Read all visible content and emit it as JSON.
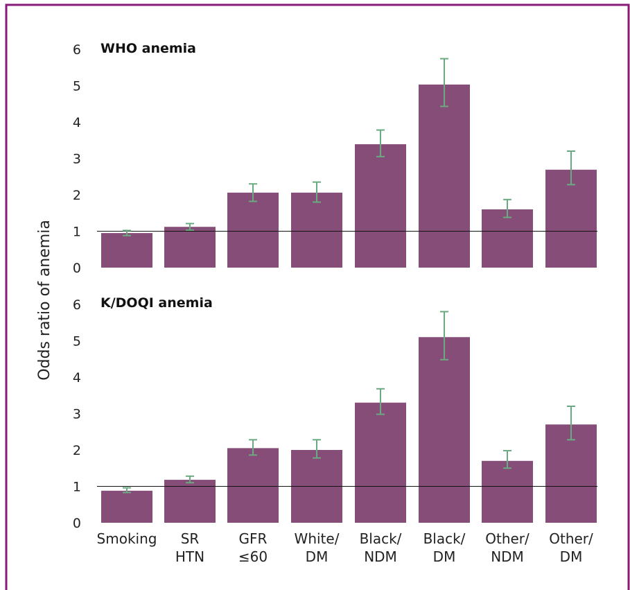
{
  "figure": {
    "border_color": "#8a1a7a",
    "bar_color": "#874d79",
    "error_color": "#6aaa80",
    "reference_line_color": "#111111"
  },
  "chart_data": [
    {
      "type": "bar",
      "title": "WHO anemia",
      "ylabel": "Odds ratio of anemia",
      "xlabel": "",
      "ylim": [
        0,
        6
      ],
      "yticks": [
        "0",
        "1",
        "2",
        "3",
        "4",
        "5",
        "6"
      ],
      "reference_line": 1,
      "categories": [
        "Smoking",
        "SR HTN",
        "GFR ≤60",
        "White/ DM",
        "Black/ NDM",
        "Black/ DM",
        "Other/ NDM",
        "Other/ DM"
      ],
      "values": [
        0.95,
        1.12,
        2.06,
        2.06,
        3.39,
        5.03,
        1.6,
        2.69
      ],
      "error_low": [
        0.88,
        1.03,
        1.82,
        1.8,
        3.05,
        4.43,
        1.38,
        2.28
      ],
      "error_high": [
        1.02,
        1.21,
        2.3,
        2.35,
        3.78,
        5.74,
        1.87,
        3.2
      ],
      "show_category_labels": false
    },
    {
      "type": "bar",
      "title": "K/DOQI anemia",
      "ylabel": "Odds ratio of anemia",
      "xlabel": "",
      "ylim": [
        0,
        6
      ],
      "yticks": [
        "0",
        "1",
        "2",
        "3",
        "4",
        "5",
        "6"
      ],
      "reference_line": 1,
      "categories": [
        "Smoking",
        "SR HTN",
        "GFR ≤60",
        "White/ DM",
        "Black/ NDM",
        "Black/ DM",
        "Other/ NDM",
        "Other/ DM"
      ],
      "values": [
        0.88,
        1.18,
        2.05,
        2.0,
        3.3,
        5.1,
        1.7,
        2.7
      ],
      "error_low": [
        0.83,
        1.1,
        1.86,
        1.78,
        2.98,
        4.48,
        1.5,
        2.28
      ],
      "error_high": [
        0.96,
        1.28,
        2.28,
        2.28,
        3.68,
        5.8,
        1.98,
        3.2
      ],
      "show_category_labels": true
    }
  ],
  "category_label_lines": [
    [
      "Smoking"
    ],
    [
      "SR",
      "HTN"
    ],
    [
      "GFR",
      "≤60"
    ],
    [
      "White/",
      "DM"
    ],
    [
      "Black/",
      "NDM"
    ],
    [
      "Black/",
      "DM"
    ],
    [
      "Other/",
      "NDM"
    ],
    [
      "Other/",
      "DM"
    ]
  ]
}
